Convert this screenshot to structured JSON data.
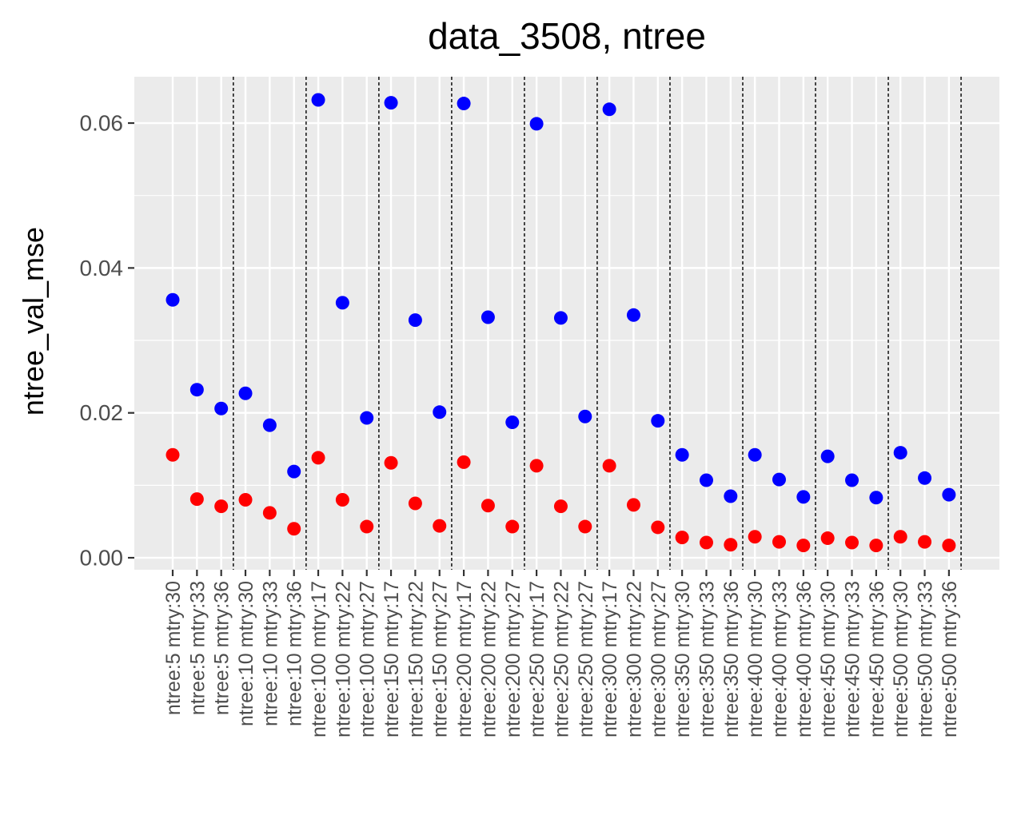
{
  "chart_data": {
    "type": "scatter",
    "title": "data_3508, ntree",
    "xlabel": "",
    "ylabel": "ntree_val_mse",
    "ylim": [
      -0.00165,
      0.0664
    ],
    "yticks": [
      0.0,
      0.02,
      0.04,
      0.06
    ],
    "ytick_labels": [
      "0.00",
      "0.02",
      "0.04",
      "0.06"
    ],
    "grid": true,
    "legend": "none",
    "categories": [
      "ntree:5 mtry:30",
      "ntree:5 mtry:33",
      "ntree:5 mtry:36",
      "ntree:10 mtry:30",
      "ntree:10 mtry:33",
      "ntree:10 mtry:36",
      "ntree:100 mtry:17",
      "ntree:100 mtry:22",
      "ntree:100 mtry:27",
      "ntree:150 mtry:17",
      "ntree:150 mtry:22",
      "ntree:150 mtry:27",
      "ntree:200 mtry:17",
      "ntree:200 mtry:22",
      "ntree:200 mtry:27",
      "ntree:250 mtry:17",
      "ntree:250 mtry:22",
      "ntree:250 mtry:27",
      "ntree:300 mtry:17",
      "ntree:300 mtry:22",
      "ntree:300 mtry:27",
      "ntree:350 mtry:30",
      "ntree:350 mtry:33",
      "ntree:350 mtry:36",
      "ntree:400 mtry:30",
      "ntree:400 mtry:33",
      "ntree:400 mtry:36",
      "ntree:450 mtry:30",
      "ntree:450 mtry:33",
      "ntree:450 mtry:36",
      "ntree:500 mtry:30",
      "ntree:500 mtry:33",
      "ntree:500 mtry:36"
    ],
    "series": [
      {
        "color": "#0000ff",
        "values": [
          0.0356,
          0.0232,
          0.0206,
          0.0227,
          0.0183,
          0.0119,
          0.0632,
          0.0352,
          0.0193,
          0.0628,
          0.0328,
          0.0201,
          0.0627,
          0.0332,
          0.0187,
          0.0599,
          0.0331,
          0.0195,
          0.0619,
          0.0335,
          0.0189,
          0.0142,
          0.0107,
          0.0085,
          0.0142,
          0.0108,
          0.0084,
          0.014,
          0.0107,
          0.0083,
          0.0145,
          0.011,
          0.0087
        ]
      },
      {
        "color": "#ff0000",
        "values": [
          0.0142,
          0.0081,
          0.0071,
          0.008,
          0.0062,
          0.004,
          0.0138,
          0.008,
          0.0043,
          0.0131,
          0.0075,
          0.0044,
          0.0132,
          0.0072,
          0.0043,
          0.0127,
          0.0071,
          0.0043,
          0.0127,
          0.0073,
          0.0042,
          0.0028,
          0.0021,
          0.0018,
          0.0029,
          0.0022,
          0.0017,
          0.0027,
          0.0021,
          0.0017,
          0.0029,
          0.0022,
          0.0017
        ]
      }
    ],
    "vlines_after_index": [
      2,
      5,
      8,
      11,
      14,
      17,
      20,
      23,
      26,
      29,
      32
    ],
    "colors": {
      "panel_background": "#ebebeb",
      "grid": "#ffffff",
      "axis_text": "#4d4d4d",
      "vline": "#000000"
    }
  }
}
